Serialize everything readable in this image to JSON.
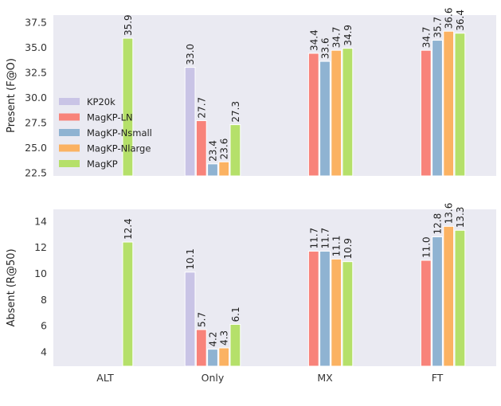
{
  "chart_data": {
    "type": "bar",
    "categories": [
      "ALT",
      "Only",
      "MX",
      "FT"
    ],
    "legend": {
      "placement": "left",
      "panel": "top"
    },
    "grid": false,
    "series_meta": [
      {
        "name": "KP20k",
        "color": "#c9c4e6"
      },
      {
        "name": "MagKP-LN",
        "color": "#f8837a"
      },
      {
        "name": "MagKP-Nsmall",
        "color": "#8fb3d2"
      },
      {
        "name": "MagKP-Nlarge",
        "color": "#fbb262"
      },
      {
        "name": "MagKP",
        "color": "#b5e06a"
      }
    ],
    "panels": [
      {
        "ylabel": "Present (F@O)",
        "ylim": [
          22.2,
          38.2
        ],
        "yticks": [
          "22.5",
          "25.0",
          "27.5",
          "30.0",
          "32.5",
          "35.0",
          "37.5"
        ],
        "ytick_values": [
          22.5,
          25.0,
          27.5,
          30.0,
          32.5,
          35.0,
          37.5
        ],
        "series": [
          {
            "name": "KP20k",
            "values": [
              null,
              33.0,
              null,
              null
            ],
            "labels": [
              "",
              "33.0",
              "",
              ""
            ]
          },
          {
            "name": "MagKP-LN",
            "values": [
              null,
              27.7,
              34.4,
              34.7
            ],
            "labels": [
              "",
              "27.7",
              "34.4",
              "34.7"
            ]
          },
          {
            "name": "MagKP-Nsmall",
            "values": [
              null,
              23.4,
              33.6,
              35.7
            ],
            "labels": [
              "",
              "23.4",
              "33.6",
              "35.7"
            ]
          },
          {
            "name": "MagKP-Nlarge",
            "values": [
              null,
              23.6,
              34.7,
              36.6
            ],
            "labels": [
              "",
              "23.6",
              "34.7",
              "36.6"
            ]
          },
          {
            "name": "MagKP",
            "values": [
              35.9,
              27.3,
              34.9,
              36.4
            ],
            "labels": [
              "35.9",
              "27.3",
              "34.9",
              "36.4"
            ]
          }
        ]
      },
      {
        "ylabel": "Absent (R@50)",
        "ylim": [
          2.9,
          14.9
        ],
        "yticks": [
          "4",
          "6",
          "8",
          "10",
          "12",
          "14"
        ],
        "ytick_values": [
          4,
          6,
          8,
          10,
          12,
          14
        ],
        "series": [
          {
            "name": "KP20k",
            "values": [
              null,
              10.1,
              null,
              null
            ],
            "labels": [
              "",
              "10.1",
              "",
              ""
            ]
          },
          {
            "name": "MagKP-LN",
            "values": [
              null,
              5.7,
              11.7,
              11.0
            ],
            "labels": [
              "",
              "5.7",
              "11.7",
              "11.0"
            ]
          },
          {
            "name": "MagKP-Nsmall",
            "values": [
              null,
              4.2,
              11.7,
              12.8
            ],
            "labels": [
              "",
              "4.2",
              "11.7",
              "12.8"
            ]
          },
          {
            "name": "MagKP-Nlarge",
            "values": [
              null,
              4.3,
              11.1,
              13.6
            ],
            "labels": [
              "",
              "4.3",
              "11.1",
              "13.6"
            ]
          },
          {
            "name": "MagKP",
            "values": [
              12.4,
              6.1,
              10.9,
              13.3
            ],
            "labels": [
              "12.4",
              "6.1",
              "10.9",
              "13.3"
            ]
          }
        ]
      }
    ]
  }
}
